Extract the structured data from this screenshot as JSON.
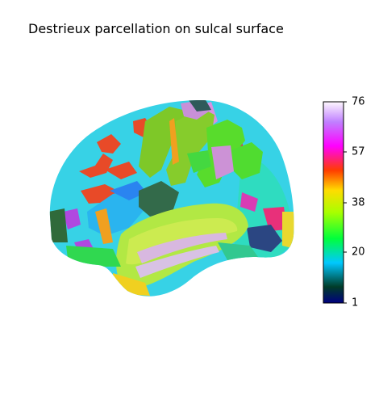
{
  "figure": {
    "title": "Destrieux parcellation on sulcal surface"
  },
  "colorbar": {
    "colormap": "gist_ncar",
    "min": 1,
    "max": 76,
    "ticks": [
      "76",
      "57",
      "38",
      "20",
      "1"
    ],
    "stops": [
      "#000080",
      "#003c28",
      "#00c8ff",
      "#00ff3c",
      "#a8ff00",
      "#ffdc00",
      "#ff3c00",
      "#ff00ff",
      "#c080ff",
      "#fef8fe"
    ]
  }
}
